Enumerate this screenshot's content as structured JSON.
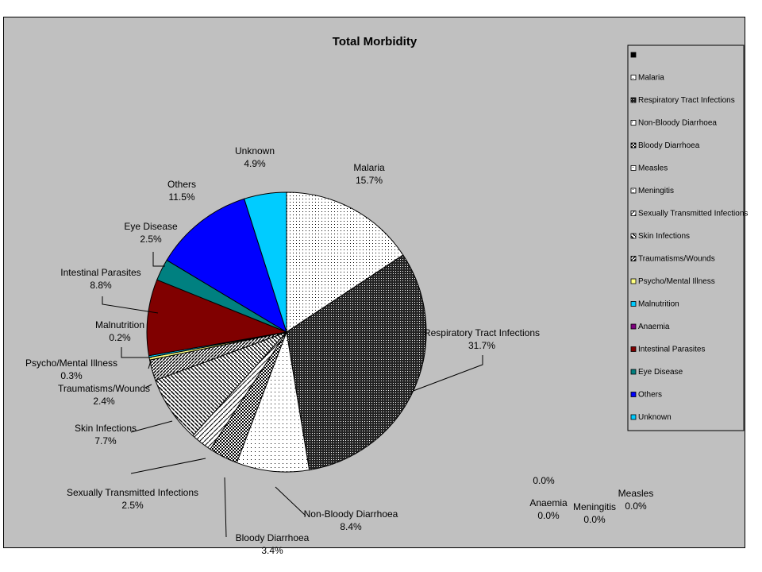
{
  "chart_data": {
    "type": "pie",
    "title": "Total Morbidity",
    "legend_position": "right",
    "legend_header": "",
    "slices": [
      {
        "name": "Malaria",
        "value": 15.7,
        "label": "15.7%",
        "color": "#ffffff",
        "pattern": "dots"
      },
      {
        "name": "Respiratory Tract Infections",
        "value": 31.7,
        "label": "31.7%",
        "color": "#000000",
        "pattern": "dense-dots"
      },
      {
        "name": "Non-Bloody Diarrhoea",
        "value": 8.4,
        "label": "8.4%",
        "color": "#ffffff",
        "pattern": "sparse-dots"
      },
      {
        "name": "Bloody Diarrhoea",
        "value": 3.4,
        "label": "3.4%",
        "color": "#000000",
        "pattern": "checker"
      },
      {
        "name": "Measles",
        "value": 0.0,
        "label": "0.0%",
        "color": "#ffffff",
        "pattern": "dots"
      },
      {
        "name": "Meningitis",
        "value": 0.0,
        "label": "0.0%",
        "color": "#ffffff",
        "pattern": "dots"
      },
      {
        "name": "Sexually Transmitted Infections",
        "value": 2.5,
        "label": "2.5%",
        "color": "#ffffff",
        "pattern": "diag-light"
      },
      {
        "name": "Skin Infections",
        "value": 7.7,
        "label": "7.7%",
        "color": "#000000",
        "pattern": "diag-back"
      },
      {
        "name": "Traumatisms/Wounds",
        "value": 2.4,
        "label": "2.4%",
        "color": "#000000",
        "pattern": "diag-fwd"
      },
      {
        "name": "Psycho/Mental Illness",
        "value": 0.3,
        "label": "0.3%",
        "color": "#ffff80",
        "pattern": "solid"
      },
      {
        "name": "Malnutrition",
        "value": 0.2,
        "label": "0.2%",
        "color": "#00ccff",
        "pattern": "solid"
      },
      {
        "name": "Anaemia",
        "value": 0.0,
        "label": "0.0%",
        "color": "#800080",
        "pattern": "solid"
      },
      {
        "name": "Intestinal Parasites",
        "value": 8.8,
        "label": "8.8%",
        "color": "#800000",
        "pattern": "solid"
      },
      {
        "name": "Eye Disease",
        "value": 2.5,
        "label": "2.5%",
        "color": "#008080",
        "pattern": "solid"
      },
      {
        "name": "Others",
        "value": 11.5,
        "label": "11.5%",
        "color": "#0000ff",
        "pattern": "solid"
      },
      {
        "name": "Unknown",
        "value": 4.9,
        "label": "4.9%",
        "color": "#00ccff",
        "pattern": "solid"
      }
    ],
    "label_names": {
      "Malaria": "Malaria",
      "Respiratory Tract Infections": "Respiratory Tract Infections",
      "Non-Bloody Diarrhoea": "Non-Bloody Diarrhoea",
      "Bloody Diarrhoea": "Bloody Diarrhoea",
      "Measles": "Measles",
      "Meningitis": "Meningitis",
      "Sexually Transmitted Infections": "Sexually Transmitted Infections",
      "Skin Infections": "Skin Infections",
      "Traumatisms/Wounds": "Traumatisms/Wounds",
      "Psycho/Mental Illness": "Psycho/Mental Illness",
      "Malnutrition": "Malnutrition",
      "Anaemia": "Anaemia",
      "Intestinal Parasites": "Intestinal Parasites",
      "Eye Disease": "Eye Disease",
      "Others": "Others",
      "Unknown": "Unknown"
    },
    "legend_labels": [
      "",
      "Malaria",
      "Respiratory Tract Infections",
      "Non-Bloody Diarrhoea",
      "Bloody Diarrhoea",
      "Measles",
      "Meningitis",
      "Sexually Transmitted Infections",
      "Skin Infections",
      "Traumatisms/Wounds",
      "Psycho/Mental Illness",
      "Malnutrition",
      "Anaemia",
      "Intestinal Parasites",
      "Eye Disease",
      "Others",
      "Unknown"
    ],
    "extra_label": "0.0%"
  }
}
